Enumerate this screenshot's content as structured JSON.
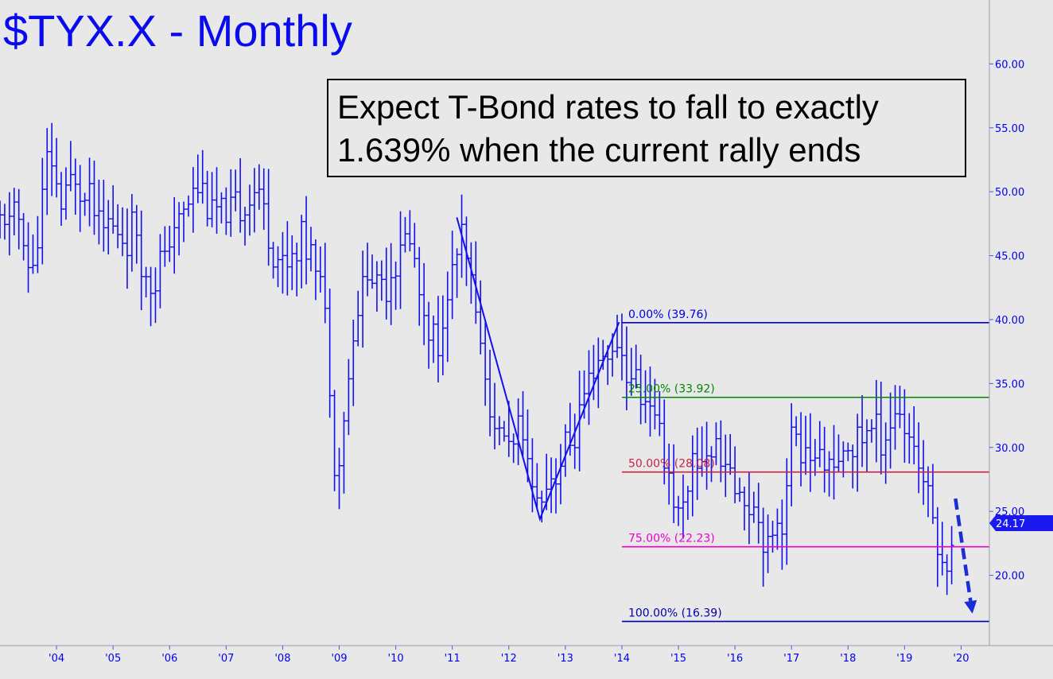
{
  "chart_data": {
    "type": "bar",
    "subtype": "ohlc-monthly",
    "title": "$TYX.X - Monthly",
    "xlabel": "",
    "ylabel": "",
    "x_range": [
      2003.0,
      2020.5
    ],
    "ylim": [
      14.5,
      65
    ],
    "y_ticks": [
      "20.00",
      "25.00",
      "30.00",
      "35.00",
      "40.00",
      "45.00",
      "50.00",
      "55.00",
      "60.00"
    ],
    "x_ticks": [
      {
        "label": "'04",
        "x": 2004.0
      },
      {
        "label": "'05",
        "x": 2005.0
      },
      {
        "label": "'06",
        "x": 2006.0
      },
      {
        "label": "'07",
        "x": 2007.0
      },
      {
        "label": "'08",
        "x": 2008.0
      },
      {
        "label": "'09",
        "x": 2009.0
      },
      {
        "label": "'10",
        "x": 2010.0
      },
      {
        "label": "'11",
        "x": 2011.0
      },
      {
        "label": "'12",
        "x": 2012.0
      },
      {
        "label": "'13",
        "x": 2013.0
      },
      {
        "label": "'14",
        "x": 2014.0
      },
      {
        "label": "'15",
        "x": 2015.0
      },
      {
        "label": "'16",
        "x": 2016.0
      },
      {
        "label": "'17",
        "x": 2017.0
      },
      {
        "label": "'18",
        "x": 2018.0
      },
      {
        "label": "'19",
        "x": 2019.0
      },
      {
        "label": "'20",
        "x": 2020.0
      }
    ],
    "annotation": {
      "lines": [
        "Expect T-Bond rates to fall to exactly",
        "1.639% when the current rally ends"
      ]
    },
    "last_price": {
      "label": "24.17",
      "value": 24.17
    },
    "fib_levels": [
      {
        "label": "0.00% (39.76)",
        "value": 39.76,
        "color": "#0000dd"
      },
      {
        "label": "25.00% (33.92)",
        "value": 33.92,
        "color": "#008800"
      },
      {
        "label": "50.00% (28.08)",
        "value": 28.08,
        "color": "#cc2244"
      },
      {
        "label": "75.00% (22.23)",
        "value": 22.23,
        "color": "#ee00cc"
      },
      {
        "label": "100.00% (16.39)",
        "value": 16.39,
        "color": "#0000aa"
      }
    ],
    "fib_start_x": 2014.0,
    "pattern_lines": [
      {
        "x": [
          2011.08,
          2012.55,
          2013.95
        ],
        "y": [
          48.0,
          24.4,
          39.8
        ]
      }
    ],
    "forecast_arrow": {
      "from": {
        "x": 2019.9,
        "y": 26.0
      },
      "to": {
        "x": 2020.2,
        "y": 17.0
      }
    },
    "anchors": [
      {
        "x": 2003.0,
        "y": 47.0
      },
      {
        "x": 2003.3,
        "y": 48.5
      },
      {
        "x": 2003.55,
        "y": 43.0
      },
      {
        "x": 2003.85,
        "y": 52.5
      },
      {
        "x": 2004.1,
        "y": 49.0
      },
      {
        "x": 2004.3,
        "y": 51.0
      },
      {
        "x": 2004.55,
        "y": 50.0
      },
      {
        "x": 2004.8,
        "y": 48.0
      },
      {
        "x": 2005.1,
        "y": 46.5
      },
      {
        "x": 2005.35,
        "y": 47.0
      },
      {
        "x": 2005.6,
        "y": 43.0
      },
      {
        "x": 2005.95,
        "y": 45.0
      },
      {
        "x": 2006.2,
        "y": 48.0
      },
      {
        "x": 2006.45,
        "y": 51.0
      },
      {
        "x": 2006.75,
        "y": 49.0
      },
      {
        "x": 2007.0,
        "y": 47.5
      },
      {
        "x": 2007.25,
        "y": 49.0
      },
      {
        "x": 2007.5,
        "y": 50.5
      },
      {
        "x": 2007.75,
        "y": 47.0
      },
      {
        "x": 2008.0,
        "y": 44.0
      },
      {
        "x": 2008.25,
        "y": 45.5
      },
      {
        "x": 2008.5,
        "y": 46.0
      },
      {
        "x": 2008.75,
        "y": 41.0
      },
      {
        "x": 2008.9,
        "y": 30.0
      },
      {
        "x": 2009.0,
        "y": 29.0
      },
      {
        "x": 2009.2,
        "y": 37.0
      },
      {
        "x": 2009.45,
        "y": 44.0
      },
      {
        "x": 2009.75,
        "y": 42.5
      },
      {
        "x": 2010.0,
        "y": 45.0
      },
      {
        "x": 2010.25,
        "y": 46.5
      },
      {
        "x": 2010.5,
        "y": 40.0
      },
      {
        "x": 2010.75,
        "y": 37.5
      },
      {
        "x": 2011.0,
        "y": 44.0
      },
      {
        "x": 2011.15,
        "y": 46.0
      },
      {
        "x": 2011.45,
        "y": 40.0
      },
      {
        "x": 2011.7,
        "y": 32.0
      },
      {
        "x": 2011.95,
        "y": 30.5
      },
      {
        "x": 2012.2,
        "y": 31.0
      },
      {
        "x": 2012.5,
        "y": 26.0
      },
      {
        "x": 2012.75,
        "y": 28.0
      },
      {
        "x": 2013.0,
        "y": 29.5
      },
      {
        "x": 2013.3,
        "y": 33.0
      },
      {
        "x": 2013.55,
        "y": 36.0
      },
      {
        "x": 2013.85,
        "y": 38.0
      },
      {
        "x": 2014.1,
        "y": 36.0
      },
      {
        "x": 2014.4,
        "y": 34.0
      },
      {
        "x": 2014.7,
        "y": 31.0
      },
      {
        "x": 2015.0,
        "y": 24.5
      },
      {
        "x": 2015.25,
        "y": 28.0
      },
      {
        "x": 2015.5,
        "y": 30.0
      },
      {
        "x": 2015.75,
        "y": 29.5
      },
      {
        "x": 2016.0,
        "y": 27.0
      },
      {
        "x": 2016.35,
        "y": 25.5
      },
      {
        "x": 2016.6,
        "y": 22.5
      },
      {
        "x": 2016.85,
        "y": 25.0
      },
      {
        "x": 2017.0,
        "y": 30.5
      },
      {
        "x": 2017.25,
        "y": 30.0
      },
      {
        "x": 2017.5,
        "y": 28.5
      },
      {
        "x": 2017.8,
        "y": 28.5
      },
      {
        "x": 2018.0,
        "y": 29.5
      },
      {
        "x": 2018.3,
        "y": 31.5
      },
      {
        "x": 2018.6,
        "y": 31.0
      },
      {
        "x": 2018.85,
        "y": 33.0
      },
      {
        "x": 2019.1,
        "y": 30.0
      },
      {
        "x": 2019.3,
        "y": 28.5
      },
      {
        "x": 2019.5,
        "y": 25.5
      },
      {
        "x": 2019.65,
        "y": 20.5
      },
      {
        "x": 2019.8,
        "y": 21.5
      },
      {
        "x": 2019.9,
        "y": 24.17
      }
    ]
  }
}
